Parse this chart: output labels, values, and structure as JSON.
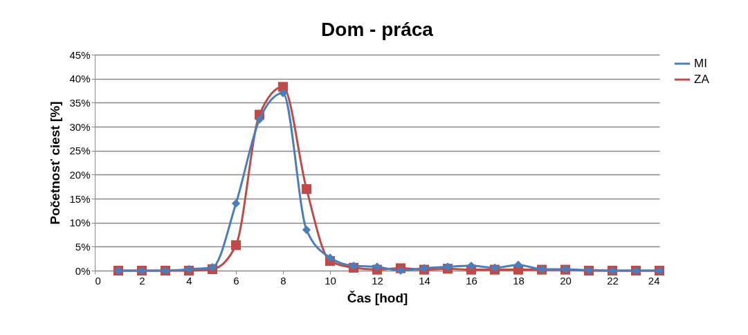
{
  "chart_data": {
    "type": "line",
    "title": "Dom - práca",
    "xlabel": "Čas [hod]",
    "ylabel": "Početnosť ciest [%]",
    "x": [
      1,
      2,
      3,
      4,
      5,
      6,
      7,
      8,
      9,
      10,
      11,
      12,
      13,
      14,
      15,
      16,
      17,
      18,
      19,
      20,
      21,
      22,
      23,
      24
    ],
    "series": [
      {
        "name": "MI",
        "color": "#4a7ebb",
        "marker": "diamond",
        "values": [
          0,
          0,
          0,
          0.3,
          0.7,
          14,
          31.5,
          37,
          8.5,
          2.7,
          1,
          0.8,
          0,
          0.5,
          0.8,
          1,
          0.6,
          1.2,
          0.3,
          0.3,
          0.1,
          0,
          0,
          0
        ]
      },
      {
        "name": "ZA",
        "color": "#be4b48",
        "marker": "square",
        "values": [
          0,
          0,
          0,
          0,
          0.3,
          5.3,
          32.5,
          38.3,
          17,
          2,
          0.6,
          0.2,
          0.5,
          0.2,
          0.4,
          0.2,
          0.2,
          0.2,
          0.2,
          0.2,
          0,
          0,
          0,
          0
        ]
      }
    ],
    "xlim": [
      0,
      24
    ],
    "xticks": [
      0,
      2,
      4,
      6,
      8,
      10,
      12,
      14,
      16,
      18,
      20,
      22,
      24
    ],
    "ylim": [
      0,
      45
    ],
    "yticks": [
      {
        "value": 0,
        "label": "0%"
      },
      {
        "value": 5,
        "label": "5%"
      },
      {
        "value": 10,
        "label": "10%"
      },
      {
        "value": 15,
        "label": "15%"
      },
      {
        "value": 20,
        "label": "20%"
      },
      {
        "value": 25,
        "label": "25%"
      },
      {
        "value": 30,
        "label": "30%"
      },
      {
        "value": 35,
        "label": "35%"
      },
      {
        "value": 40,
        "label": "40%"
      },
      {
        "value": 45,
        "label": "45%"
      }
    ],
    "grid": "y",
    "legend": "right",
    "line_style": "solid"
  }
}
